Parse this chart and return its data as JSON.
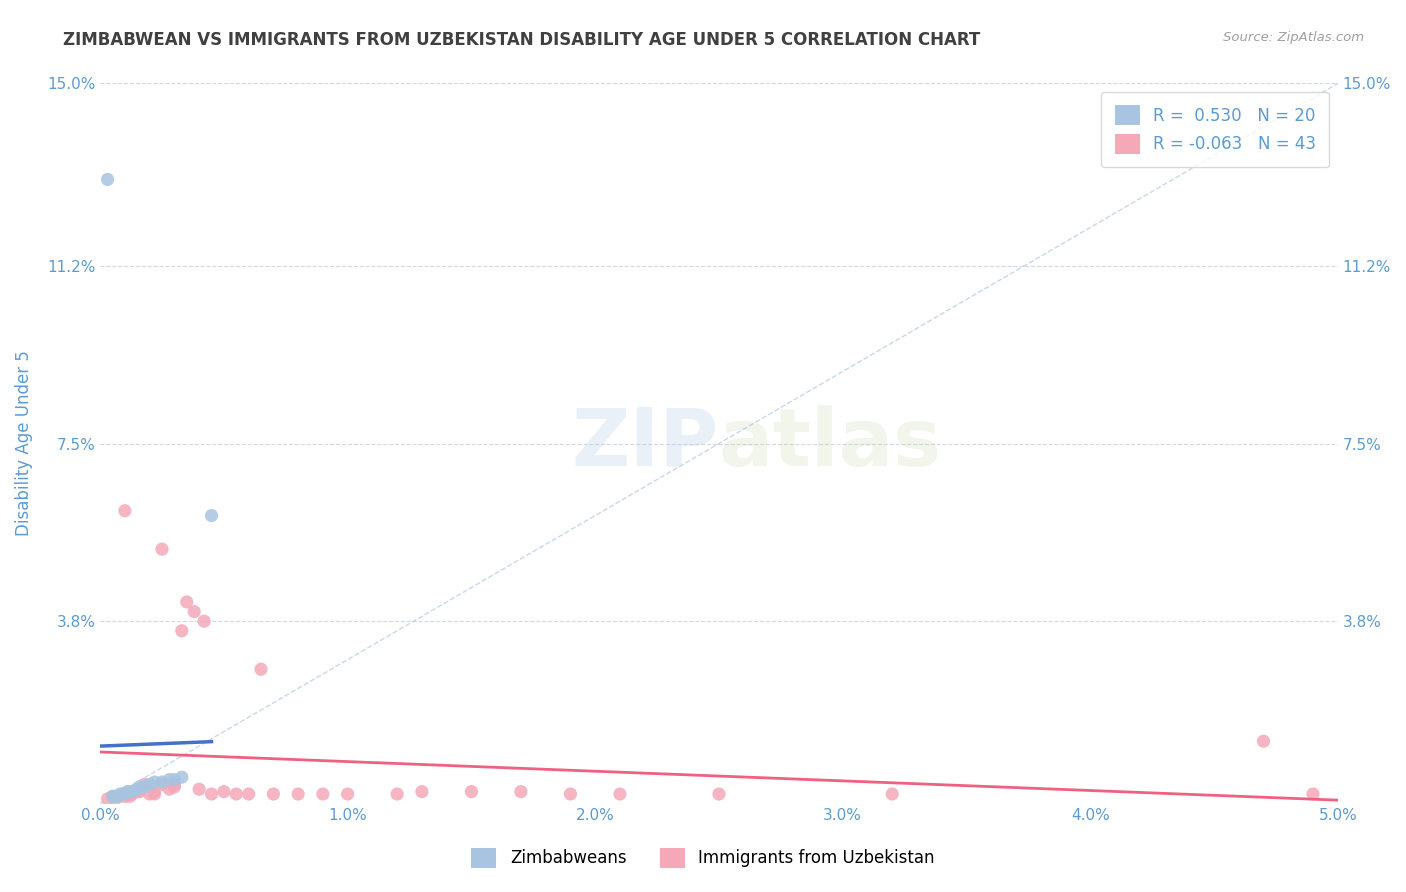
{
  "title": "ZIMBABWEAN VS IMMIGRANTS FROM UZBEKISTAN DISABILITY AGE UNDER 5 CORRELATION CHART",
  "source": "Source: ZipAtlas.com",
  "ylabel": "Disability Age Under 5",
  "legend_labels": [
    "Zimbabweans",
    "Immigrants from Uzbekistan"
  ],
  "r_zimbabwean": 0.53,
  "n_zimbabwean": 20,
  "r_uzbekistan": -0.063,
  "n_uzbekistan": 43,
  "xlim": [
    0.0,
    0.05
  ],
  "ylim": [
    0.0,
    0.15
  ],
  "yticks": [
    0.0,
    0.038,
    0.075,
    0.112,
    0.15
  ],
  "ytick_labels": [
    "",
    "3.8%",
    "7.5%",
    "11.2%",
    "15.0%"
  ],
  "xticks": [
    0.0,
    0.01,
    0.02,
    0.03,
    0.04,
    0.05
  ],
  "xtick_labels": [
    "0.0%",
    "1.0%",
    "2.0%",
    "3.0%",
    "4.0%",
    "5.0%"
  ],
  "color_zimbabwean": "#a8c4e0",
  "color_uzbekistan": "#f4a8b8",
  "line_color_zimbabwean": "#4472c4",
  "line_color_uzbekistan": "#f06080",
  "scatter_zimbabwean_x": [
    0.0005,
    0.0008,
    0.001,
    0.0012,
    0.0013,
    0.0015,
    0.0016,
    0.0018,
    0.002,
    0.0022,
    0.0025,
    0.0028,
    0.003,
    0.0033,
    0.0003,
    0.0045,
    0.0006,
    0.0007,
    0.0009,
    0.0011
  ],
  "scatter_zimbabwean_y": [
    0.0015,
    0.002,
    0.002,
    0.0025,
    0.0025,
    0.003,
    0.0035,
    0.0035,
    0.004,
    0.0045,
    0.0045,
    0.005,
    0.005,
    0.0055,
    0.13,
    0.06,
    0.0015,
    0.0015,
    0.002,
    0.0025
  ],
  "scatter_uzbekistan_x": [
    0.0003,
    0.0005,
    0.0006,
    0.0008,
    0.001,
    0.001,
    0.0012,
    0.0013,
    0.0015,
    0.0016,
    0.0018,
    0.002,
    0.0022,
    0.0022,
    0.0025,
    0.0025,
    0.0028,
    0.003,
    0.003,
    0.0033,
    0.0035,
    0.0038,
    0.004,
    0.0042,
    0.0045,
    0.005,
    0.0055,
    0.006,
    0.0065,
    0.007,
    0.008,
    0.009,
    0.01,
    0.012,
    0.013,
    0.015,
    0.017,
    0.019,
    0.021,
    0.025,
    0.032,
    0.047,
    0.049
  ],
  "scatter_uzbekistan_y": [
    0.001,
    0.0015,
    0.001,
    0.0015,
    0.0015,
    0.061,
    0.0015,
    0.002,
    0.0025,
    0.0025,
    0.004,
    0.002,
    0.002,
    0.0025,
    0.053,
    0.004,
    0.003,
    0.0035,
    0.004,
    0.036,
    0.042,
    0.04,
    0.003,
    0.038,
    0.002,
    0.0025,
    0.002,
    0.002,
    0.028,
    0.002,
    0.002,
    0.002,
    0.002,
    0.002,
    0.0025,
    0.0025,
    0.0025,
    0.002,
    0.002,
    0.002,
    0.002,
    0.013,
    0.002
  ],
  "watermark_zip": "ZIP",
  "watermark_atlas": "atlas",
  "grid_color": "#d0d8e8",
  "title_color": "#404040",
  "axis_label_color": "#5b9bd5",
  "tick_label_color": "#5b9bd5"
}
